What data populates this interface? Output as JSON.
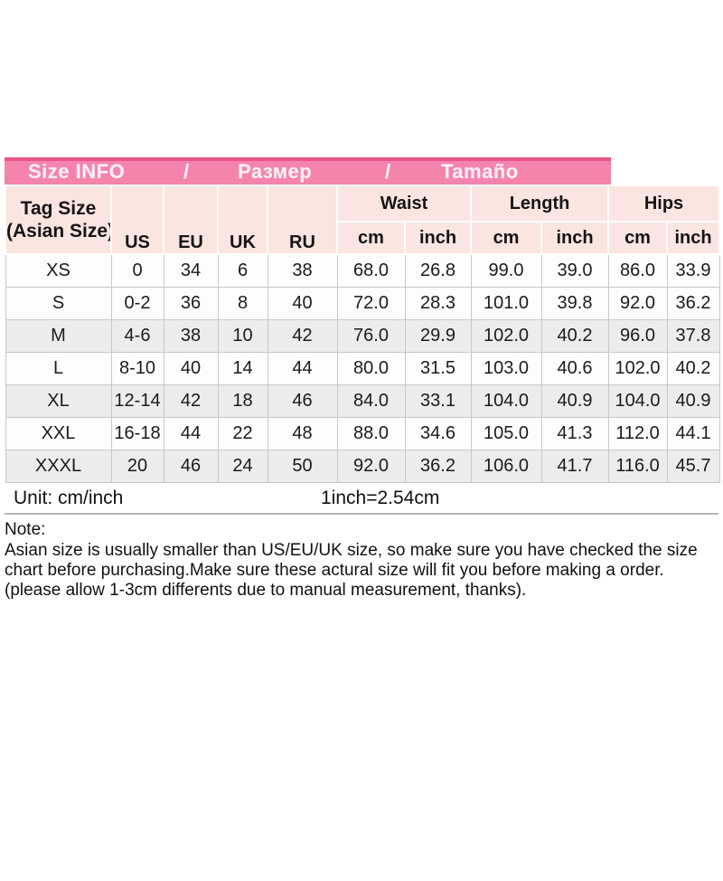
{
  "banner": {
    "segments": [
      "Size INFO",
      "/",
      "Размер",
      "/",
      "Tamaño"
    ]
  },
  "size_table": {
    "corner_header": [
      "Tag Size",
      "(Asian Size)"
    ],
    "plain_headers": [
      "US",
      "EU",
      "UK",
      "RU"
    ],
    "group_headers": [
      {
        "label": "Waist",
        "subs": [
          "cm",
          "inch"
        ]
      },
      {
        "label": "Length",
        "subs": [
          "cm",
          "inch"
        ]
      },
      {
        "label": "Hips",
        "subs": [
          "cm",
          "inch"
        ]
      }
    ],
    "rows": [
      {
        "tag": "XS",
        "values": [
          "0",
          "34",
          "6",
          "38",
          "68.0",
          "26.8",
          "99.0",
          "39.0",
          "86.0",
          "33.9"
        ]
      },
      {
        "tag": "S",
        "values": [
          "0-2",
          "36",
          "8",
          "40",
          "72.0",
          "28.3",
          "101.0",
          "39.8",
          "92.0",
          "36.2"
        ]
      },
      {
        "tag": "M",
        "values": [
          "4-6",
          "38",
          "10",
          "42",
          "76.0",
          "29.9",
          "102.0",
          "40.2",
          "96.0",
          "37.8"
        ]
      },
      {
        "tag": "L",
        "values": [
          "8-10",
          "40",
          "14",
          "44",
          "80.0",
          "31.5",
          "103.0",
          "40.6",
          "102.0",
          "40.2"
        ]
      },
      {
        "tag": "XL",
        "values": [
          "12-14",
          "42",
          "18",
          "46",
          "84.0",
          "33.1",
          "104.0",
          "40.9",
          "104.0",
          "40.9"
        ]
      },
      {
        "tag": "XXL",
        "values": [
          "16-18",
          "44",
          "22",
          "48",
          "88.0",
          "34.6",
          "105.0",
          "41.3",
          "112.0",
          "44.1"
        ]
      },
      {
        "tag": "XXXL",
        "values": [
          "20",
          "46",
          "24",
          "50",
          "92.0",
          "36.2",
          "106.0",
          "41.7",
          "116.0",
          "45.7"
        ]
      }
    ],
    "striped_rows": [
      "M",
      "XL",
      "XXXL"
    ]
  },
  "unit_bar": {
    "unit_label": "Unit: cm/inch",
    "conversion": "1inch=2.54cm"
  },
  "note": {
    "title": "Note:",
    "body": "Asian size is usually smaller than US/EU/UK size, so make sure you have checked the size chart before purchasing.Make sure these actural size will fit you before making a order.(please allow 1-3cm differents due to manual measurement, thanks)."
  },
  "colors": {
    "banner_pink": "#f584ad",
    "banner_border_pink": "#e9548a",
    "header_peach": "#fbe5e1",
    "stripe_gray": "#ececec",
    "border_gray": "#c8c8c8",
    "text_dark": "#1b1b1b"
  }
}
